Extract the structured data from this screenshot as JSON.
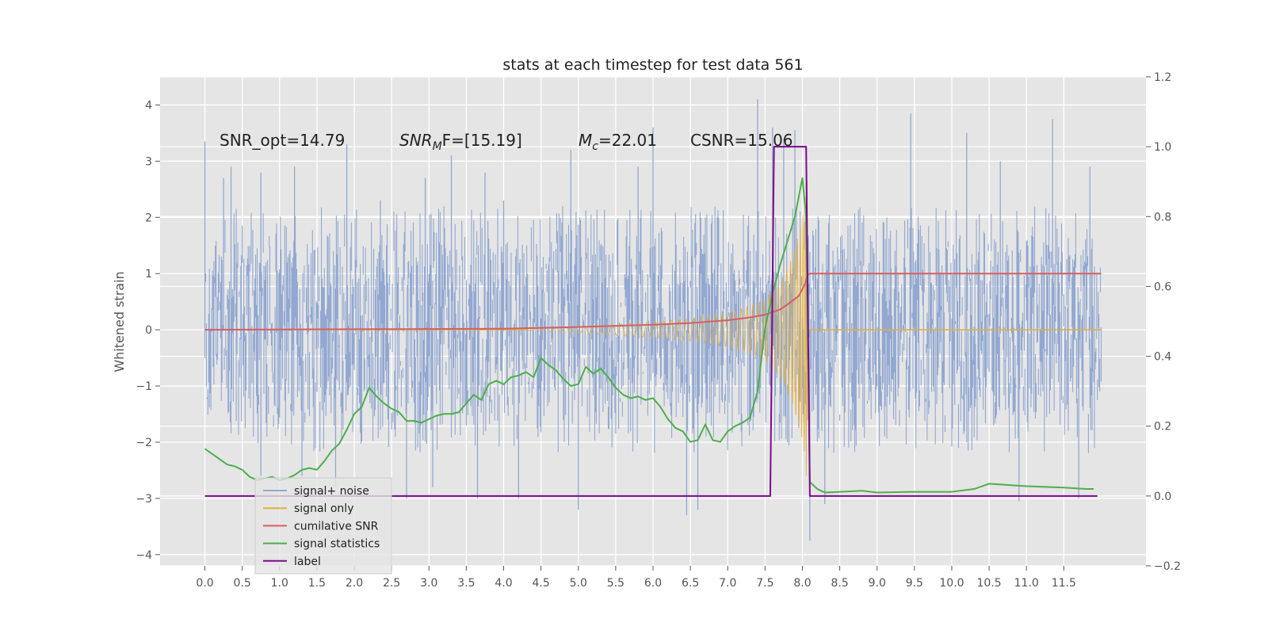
{
  "chart_data": {
    "type": "line",
    "title": "stats at each timestep for test data 561",
    "ylabel": "Whitened strain",
    "xlim": [
      -0.6,
      12.6
    ],
    "ylim": [
      -4.2,
      4.5
    ],
    "y2lim": [
      -0.2,
      1.2
    ],
    "x_ticks": [
      "0.0",
      "0.5",
      "1.0",
      "1.5",
      "2.0",
      "2.5",
      "3.0",
      "3.5",
      "4.0",
      "4.5",
      "5.0",
      "5.5",
      "6.0",
      "6.5",
      "7.0",
      "7.5",
      "8.0",
      "8.5",
      "9.0",
      "9.5",
      "10.0",
      "10.5",
      "11.0",
      "11.5"
    ],
    "y_ticks": [
      "4",
      "3",
      "2",
      "1",
      "0",
      "−1",
      "−2",
      "−3",
      "−4"
    ],
    "y2_ticks": [
      "1.2",
      "1.0",
      "0.8",
      "0.6",
      "0.4",
      "0.2",
      "0.0",
      "−0.2"
    ],
    "grid": true,
    "legend_location": "lower-left",
    "annotations": {
      "snr_opt": "SNR_opt=14.79",
      "snr_mf_main": "SNR",
      "snr_mf_sub": "M",
      "snr_mf_rest": "F=[15.19]",
      "mc_main": "M",
      "mc_sub": "c",
      "mc_rest": "=22.01",
      "csnr": "CSNR=15.06"
    },
    "legend_ghost_text": "cumilative SNR",
    "series": [
      {
        "name": "signal+ noise",
        "axis": "left",
        "color": "#92a8d1",
        "style": "noise band approx. ±2.2 with occasional spikes to ~4.1",
        "envelope_x": [
          0,
          12
        ],
        "envelope_y": [
          -2.2,
          2.2
        ],
        "spikes": [
          [
            0.0,
            3.35
          ],
          [
            0.25,
            2.7
          ],
          [
            0.35,
            2.9
          ],
          [
            0.75,
            2.8
          ],
          [
            0.75,
            -2.6
          ],
          [
            1.2,
            2.9
          ],
          [
            1.3,
            -2.6
          ],
          [
            1.75,
            -2.8
          ],
          [
            1.9,
            3.3
          ],
          [
            2.35,
            2.3
          ],
          [
            2.7,
            -3.0
          ],
          [
            2.95,
            2.7
          ],
          [
            3.05,
            -2.8
          ],
          [
            3.3,
            3.1
          ],
          [
            3.65,
            -3.0
          ],
          [
            3.75,
            2.8
          ],
          [
            4.0,
            2.3
          ],
          [
            4.2,
            -3.0
          ],
          [
            4.9,
            3.2
          ],
          [
            5.0,
            -3.2
          ],
          [
            5.8,
            2.9
          ],
          [
            6.0,
            3.6
          ],
          [
            6.45,
            -3.3
          ],
          [
            6.6,
            -3.2
          ],
          [
            7.4,
            4.1
          ],
          [
            7.6,
            3.6
          ],
          [
            7.75,
            3.4
          ],
          [
            7.9,
            3.55
          ],
          [
            8.1,
            -3.75
          ],
          [
            8.3,
            -3.1
          ],
          [
            9.45,
            3.85
          ],
          [
            10.2,
            3.5
          ],
          [
            10.65,
            3.0
          ],
          [
            10.9,
            -3.05
          ],
          [
            11.35,
            3.75
          ],
          [
            11.7,
            -3.0
          ],
          [
            11.85,
            2.9
          ]
        ]
      },
      {
        "name": "signal only",
        "axis": "left",
        "color": "#e5ae38",
        "style": "chirp with growing amplitude, merging near t=8.05",
        "x": [
          4.3,
          5.0,
          5.5,
          6.0,
          6.5,
          7.0,
          7.3,
          7.5,
          7.7,
          7.85,
          7.95,
          8.02,
          8.07
        ],
        "amplitude": [
          0.01,
          0.06,
          0.1,
          0.14,
          0.2,
          0.3,
          0.42,
          0.55,
          0.85,
          1.25,
          1.7,
          2.1,
          2.9
        ]
      },
      {
        "name": "cumilative SNR",
        "axis": "left",
        "color": "#d65f5f",
        "x": [
          0,
          2,
          4,
          5,
          6,
          6.5,
          7,
          7.3,
          7.5,
          7.7,
          7.8,
          7.95,
          8.03,
          8.07,
          8.1,
          12
        ],
        "y": [
          0,
          0.01,
          0.02,
          0.05,
          0.09,
          0.12,
          0.17,
          0.22,
          0.27,
          0.36,
          0.45,
          0.6,
          0.8,
          0.98,
          1.0,
          1.0
        ]
      },
      {
        "name": "signal statistics",
        "axis": "right",
        "color": "#4daf4a",
        "x": [
          0,
          0.1,
          0.2,
          0.3,
          0.4,
          0.5,
          0.6,
          0.7,
          0.8,
          0.9,
          1.0,
          1.1,
          1.2,
          1.3,
          1.4,
          1.5,
          1.6,
          1.7,
          1.8,
          1.9,
          2.0,
          2.1,
          2.2,
          2.3,
          2.4,
          2.5,
          2.6,
          2.7,
          2.8,
          2.9,
          3.0,
          3.1,
          3.2,
          3.3,
          3.4,
          3.5,
          3.6,
          3.7,
          3.8,
          3.9,
          4.0,
          4.1,
          4.2,
          4.3,
          4.4,
          4.5,
          4.6,
          4.7,
          4.8,
          4.9,
          5.0,
          5.1,
          5.2,
          5.3,
          5.4,
          5.5,
          5.6,
          5.7,
          5.8,
          5.9,
          6.0,
          6.1,
          6.2,
          6.3,
          6.4,
          6.5,
          6.6,
          6.7,
          6.8,
          6.9,
          7.0,
          7.1,
          7.2,
          7.3,
          7.4,
          7.5,
          7.6,
          7.7,
          7.8,
          7.9,
          8.0,
          8.05,
          8.1,
          8.2,
          8.3,
          8.5,
          8.8,
          9.0,
          9.5,
          10.0,
          10.3,
          10.5,
          11.0,
          11.5,
          11.8,
          11.9
        ],
        "y": [
          0.135,
          0.12,
          0.105,
          0.09,
          0.085,
          0.075,
          0.055,
          0.045,
          0.05,
          0.055,
          0.045,
          0.05,
          0.06,
          0.075,
          0.08,
          0.075,
          0.1,
          0.13,
          0.15,
          0.19,
          0.235,
          0.255,
          0.31,
          0.285,
          0.265,
          0.25,
          0.24,
          0.215,
          0.215,
          0.21,
          0.22,
          0.23,
          0.235,
          0.235,
          0.24,
          0.265,
          0.29,
          0.275,
          0.32,
          0.33,
          0.32,
          0.34,
          0.345,
          0.355,
          0.34,
          0.395,
          0.375,
          0.36,
          0.335,
          0.315,
          0.32,
          0.37,
          0.35,
          0.365,
          0.34,
          0.31,
          0.29,
          0.28,
          0.285,
          0.275,
          0.28,
          0.255,
          0.22,
          0.195,
          0.185,
          0.155,
          0.16,
          0.205,
          0.16,
          0.155,
          0.185,
          0.2,
          0.21,
          0.225,
          0.3,
          0.48,
          0.58,
          0.66,
          0.73,
          0.8,
          0.91,
          0.8,
          0.04,
          0.02,
          0.01,
          0.012,
          0.015,
          0.01,
          0.012,
          0.012,
          0.02,
          0.035,
          0.028,
          0.024,
          0.02,
          0.02
        ]
      },
      {
        "name": "label",
        "axis": "right",
        "color": "#7b0c8c",
        "x": [
          0,
          7.57,
          7.62,
          8.05,
          8.1,
          11.95
        ],
        "y": [
          0,
          0,
          1,
          1,
          0,
          0
        ]
      }
    ]
  }
}
